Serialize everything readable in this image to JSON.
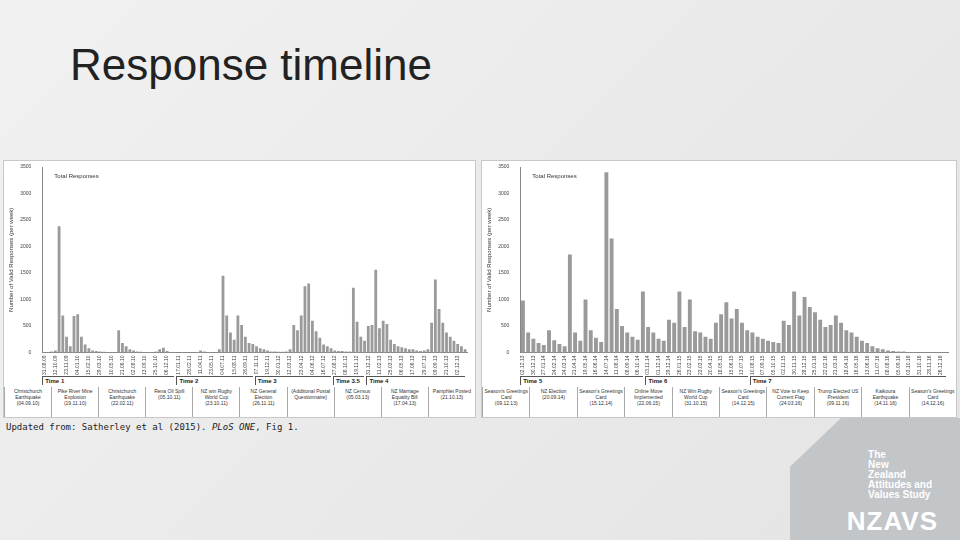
{
  "slide": {
    "title": "Response timeline",
    "caption": "Updated from: Satherley et al (2015). PLoS ONE, Fig 1.",
    "caption_italic": "PLoS ONE",
    "logo": {
      "lines": [
        "The",
        "New",
        "Zealand",
        "Attitudes and",
        "Values Study"
      ],
      "acronym": "NZAVS"
    }
  },
  "chart_data": [
    {
      "type": "bar",
      "title": "Total Responses",
      "y_label": "Number of Valid Responses (per week)",
      "categories": [
        "31.08.09",
        null,
        null,
        "12.10.09",
        null,
        null,
        "23.11.09",
        null,
        null,
        "04.01.10",
        null,
        null,
        "15.02.10",
        null,
        null,
        "29.03.10",
        null,
        null,
        "10.05.10",
        null,
        null,
        "21.06.10",
        null,
        null,
        "02.08.10",
        null,
        null,
        "13.09.10",
        null,
        null,
        "25.10.10",
        null,
        null,
        "06.12.10",
        null,
        null,
        "17.01.11",
        null,
        null,
        "28.02.11",
        null,
        null,
        "11.04.11",
        null,
        null,
        "23.05.11",
        null,
        null,
        "04.07.11",
        null,
        null,
        "15.08.11",
        null,
        null,
        "26.09.11",
        null,
        null,
        "07.11.11",
        null,
        null,
        "19.12.11",
        null,
        null,
        "30.01.12",
        null,
        null,
        "12.03.12",
        null,
        null,
        "23.04.12",
        null,
        null,
        "04.06.12",
        null,
        null,
        "16.07.12",
        null,
        null,
        "27.08.12",
        null,
        null,
        "08.10.12",
        null,
        null,
        "19.11.12",
        null,
        null,
        "31.12.12",
        null,
        null,
        "11.02.13",
        null,
        null,
        "25.03.13",
        null,
        null,
        "06.05.13",
        null,
        null,
        "17.06.13",
        null,
        null,
        "29.07.13",
        null,
        null,
        "09.09.13",
        null,
        null,
        "21.10.13",
        null,
        null,
        "02.12.13",
        null,
        null
      ],
      "values": [
        0,
        0,
        20,
        40,
        2380,
        700,
        300,
        120,
        690,
        720,
        300,
        150,
        80,
        40,
        30,
        20,
        15,
        10,
        10,
        10,
        420,
        180,
        120,
        60,
        40,
        20,
        15,
        10,
        10,
        5,
        20,
        60,
        90,
        30,
        10,
        5,
        0,
        0,
        0,
        0,
        5,
        10,
        40,
        20,
        10,
        5,
        5,
        60,
        1450,
        700,
        380,
        240,
        700,
        520,
        300,
        180,
        160,
        120,
        80,
        60,
        40,
        20,
        20,
        15,
        15,
        20,
        60,
        520,
        420,
        700,
        1250,
        1300,
        600,
        400,
        280,
        150,
        120,
        80,
        40,
        30,
        30,
        20,
        20,
        1220,
        580,
        300,
        220,
        500,
        520,
        1560,
        460,
        600,
        540,
        240,
        160,
        120,
        100,
        80,
        60,
        60,
        40,
        30,
        40,
        60,
        560,
        1380,
        820,
        560,
        380,
        300,
        220,
        160,
        120,
        60
      ],
      "color": "#9a9a9a",
      "ylim": [
        0,
        3500
      ],
      "yticks": [
        0,
        500,
        1000,
        1500,
        2000,
        2500,
        3000,
        3500
      ],
      "grid": false,
      "periods": [
        {
          "label": "Time 1",
          "start": "31.08.09"
        },
        {
          "label": "Time 2",
          "start": "17.01.11"
        },
        {
          "label": "Time 3",
          "start": "07.11.11"
        },
        {
          "label": "Time 3.5",
          "start": "27.08.12"
        },
        {
          "label": "Time 4",
          "start": "31.12.12"
        }
      ],
      "events": [
        {
          "text": "Christchurch Earthquake",
          "date": "(04.09.10)"
        },
        {
          "text": "Pike River Mine Explosion",
          "date": "(19.11.10)"
        },
        {
          "text": "Christchurch Earthquake",
          "date": "(22.02.11)"
        },
        {
          "text": "Rena Oil Spill",
          "date": "(05.10.11)"
        },
        {
          "text": "NZ win Rugby World Cup",
          "date": "(23.10.11)"
        },
        {
          "text": "NZ General Election",
          "date": "(26.11.11)"
        },
        {
          "text": "(Additional Postal Questionnaire)"
        },
        {
          "text": "NZ Census",
          "date": "(05.03.13)"
        },
        {
          "text": "NZ Marriage Equality Bill",
          "date": "(17.04.13)"
        },
        {
          "text": "Pamphlet Posted",
          "date": "(21.10.13)"
        }
      ]
    },
    {
      "type": "bar",
      "title": "Total Responses",
      "y_label": "Number of Valid Responses (per week)",
      "categories": [
        "02.12.13",
        null,
        "30.12.13",
        null,
        "27.01.14",
        null,
        "24.02.14",
        null,
        "24.03.14",
        null,
        "21.04.14",
        null,
        "19.05.14",
        null,
        "16.06.14",
        null,
        "14.07.14",
        null,
        "11.08.14",
        null,
        "08.09.14",
        null,
        "06.10.14",
        null,
        "03.11.14",
        null,
        "01.12.14",
        null,
        "29.12.14",
        null,
        "26.01.15",
        null,
        "23.02.15",
        null,
        "23.03.15",
        null,
        "20.04.15",
        null,
        "18.05.15",
        null,
        "15.06.15",
        null,
        "13.07.15",
        null,
        "10.08.15",
        null,
        "07.09.15",
        null,
        "05.10.15",
        null,
        "02.11.15",
        null,
        "30.11.15",
        null,
        "28.12.15",
        null,
        "25.01.16",
        null,
        "22.02.16",
        null,
        "21.03.16",
        null,
        "18.04.16",
        null,
        "16.05.16",
        null,
        "13.06.16",
        null,
        "11.07.16",
        null,
        "08.08.16",
        null,
        "05.09.16",
        null,
        "03.10.16",
        null,
        "31.10.16",
        null,
        "28.11.16",
        null,
        "26.12.16",
        null
      ],
      "values": [
        980,
        380,
        260,
        180,
        140,
        420,
        230,
        160,
        120,
        1850,
        380,
        220,
        1000,
        420,
        280,
        200,
        3400,
        2150,
        820,
        500,
        380,
        300,
        240,
        1150,
        480,
        380,
        260,
        220,
        620,
        560,
        1150,
        480,
        1000,
        400,
        380,
        300,
        260,
        560,
        720,
        950,
        640,
        820,
        560,
        420,
        380,
        300,
        260,
        220,
        200,
        180,
        600,
        520,
        1150,
        700,
        1050,
        860,
        760,
        620,
        480,
        520,
        700,
        560,
        420,
        380,
        300,
        220,
        180,
        120,
        80,
        60,
        40,
        30,
        20,
        20,
        10,
        10,
        5,
        5,
        0,
        0,
        0,
        0
      ],
      "color": "#9a9a9a",
      "ylim": [
        0,
        3500
      ],
      "yticks": [
        0,
        500,
        1000,
        1500,
        2000,
        2500,
        3000,
        3500
      ],
      "grid": false,
      "periods": [
        {
          "label": "Time 5",
          "start": "02.12.13"
        },
        {
          "label": "Time 6",
          "start": "03.11.14"
        },
        {
          "label": "Time 7",
          "start": "10.08.15"
        }
      ],
      "events": [
        {
          "text": "Season's Greetings Card",
          "date": "(09.12.13)"
        },
        {
          "text": "NZ Election",
          "date": "(20.09.14)"
        },
        {
          "text": "Season's Greetings Card",
          "date": "(15.12.14)"
        },
        {
          "text": "Online Move Implemented",
          "date": "(22.06.15)"
        },
        {
          "text": "NZ Win Rugby World Cup",
          "date": "(31.10.15)"
        },
        {
          "text": "Season's Greetings Card",
          "date": "(14.12.15)"
        },
        {
          "text": "NZ Vote to Keep Current Flag",
          "date": "(24.03.16)"
        },
        {
          "text": "Trump Elected US President",
          "date": "(09.11.16)"
        },
        {
          "text": "Kaikoura Earthquake",
          "date": "(14.11.16)"
        },
        {
          "text": "Season's Greetings Card",
          "date": "(14.12.16)"
        }
      ]
    }
  ]
}
